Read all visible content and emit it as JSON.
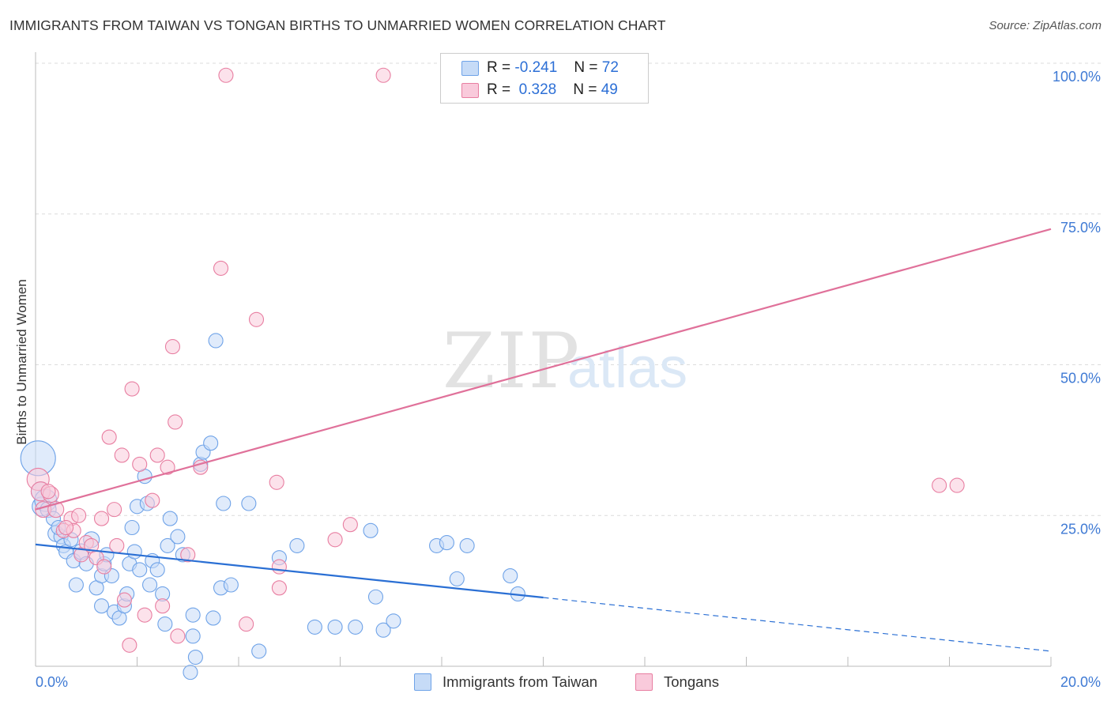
{
  "title": "IMMIGRANTS FROM TAIWAN VS TONGAN BIRTHS TO UNMARRIED WOMEN CORRELATION CHART",
  "source": "Source: ZipAtlas.com",
  "watermark": {
    "zip": "ZIP",
    "atlas": "atlas"
  },
  "legend": {
    "r_label": "R =",
    "n_label": "N =",
    "series": [
      {
        "name": "Immigrants from Taiwan",
        "r": "-0.241",
        "n": "72",
        "color": "#6fa3e8",
        "fill": "#c6dbf7"
      },
      {
        "name": "Tongans",
        "r": "0.328",
        "n": "49",
        "color": "#e87ea1",
        "fill": "#f9cadb"
      }
    ]
  },
  "chart_data": {
    "type": "scatter",
    "title": "IMMIGRANTS FROM TAIWAN VS TONGAN BIRTHS TO UNMARRIED WOMEN CORRELATION CHART",
    "xlabel": "",
    "ylabel": "Births to Unmarried Women",
    "xlim": [
      0,
      20
    ],
    "ylim": [
      0,
      100
    ],
    "x_tick_labels": [
      "0.0%",
      "20.0%"
    ],
    "y_tick_labels": [
      "25.0%",
      "50.0%",
      "75.0%",
      "100.0%"
    ],
    "y_ticks": [
      25,
      50,
      75,
      100
    ],
    "grid": true,
    "legend_position": "top-center",
    "series": [
      {
        "name": "Immigrants from Taiwan",
        "color": "#6fa3e8",
        "trend": {
          "x0": 0,
          "y0": 20.2,
          "x1": 10,
          "y1": 11.4,
          "dashed_to_x": 20,
          "dashed_to_y": 2.5
        },
        "points": [
          [
            0.05,
            34.5,
            22
          ],
          [
            0.1,
            29.0,
            12
          ],
          [
            0.12,
            26.5,
            12
          ],
          [
            0.2,
            27.5,
            14
          ],
          [
            0.25,
            26.0,
            10
          ],
          [
            0.35,
            24.5,
            9
          ],
          [
            0.4,
            22.0,
            10
          ],
          [
            0.5,
            21.5,
            9
          ],
          [
            0.55,
            20.0,
            9
          ],
          [
            0.6,
            19.0,
            9
          ],
          [
            0.7,
            21.0,
            9
          ],
          [
            0.75,
            17.5,
            9
          ],
          [
            0.8,
            13.5,
            9
          ],
          [
            0.9,
            19.0,
            10
          ],
          [
            1.0,
            17.0,
            9
          ],
          [
            1.1,
            21.0,
            10
          ],
          [
            1.2,
            13.0,
            9
          ],
          [
            1.3,
            15.0,
            9
          ],
          [
            1.35,
            17.0,
            9
          ],
          [
            1.4,
            18.5,
            9
          ],
          [
            1.5,
            15.0,
            9
          ],
          [
            1.55,
            9.0,
            9
          ],
          [
            1.65,
            8.0,
            9
          ],
          [
            1.75,
            10.0,
            9
          ],
          [
            1.8,
            12.0,
            9
          ],
          [
            1.85,
            17.0,
            9
          ],
          [
            1.95,
            19.0,
            9
          ],
          [
            2.05,
            16.0,
            9
          ],
          [
            2.0,
            26.5,
            9
          ],
          [
            2.15,
            31.5,
            9
          ],
          [
            2.2,
            27.0,
            9
          ],
          [
            2.3,
            17.5,
            9
          ],
          [
            2.4,
            16.0,
            9
          ],
          [
            2.5,
            12.0,
            9
          ],
          [
            2.55,
            7.0,
            9
          ],
          [
            2.6,
            20.0,
            9
          ],
          [
            2.65,
            24.5,
            9
          ],
          [
            2.8,
            21.5,
            9
          ],
          [
            2.9,
            18.5,
            9
          ],
          [
            3.05,
            -1.0,
            9
          ],
          [
            3.1,
            8.5,
            9
          ],
          [
            3.15,
            1.5,
            9
          ],
          [
            3.25,
            33.5,
            9
          ],
          [
            3.3,
            35.5,
            9
          ],
          [
            3.45,
            37.0,
            9
          ],
          [
            3.5,
            8.0,
            9
          ],
          [
            3.55,
            54.0,
            9
          ],
          [
            3.65,
            13.0,
            9
          ],
          [
            3.7,
            27.0,
            9
          ],
          [
            3.85,
            13.5,
            9
          ],
          [
            4.2,
            27.0,
            9
          ],
          [
            4.4,
            2.5,
            9
          ],
          [
            4.8,
            18.0,
            9
          ],
          [
            5.15,
            20.0,
            9
          ],
          [
            5.5,
            6.5,
            9
          ],
          [
            5.9,
            6.5,
            9
          ],
          [
            6.3,
            6.5,
            9
          ],
          [
            6.6,
            22.5,
            9
          ],
          [
            6.7,
            11.5,
            9
          ],
          [
            6.85,
            6.0,
            9
          ],
          [
            7.05,
            7.5,
            9
          ],
          [
            7.9,
            20.0,
            9
          ],
          [
            8.1,
            20.5,
            9
          ],
          [
            8.3,
            14.5,
            9
          ],
          [
            8.5,
            20.0,
            9
          ],
          [
            9.35,
            15.0,
            9
          ],
          [
            9.5,
            12.0,
            9
          ],
          [
            1.3,
            10.0,
            9
          ],
          [
            2.25,
            13.5,
            9
          ],
          [
            0.45,
            23.0,
            9
          ],
          [
            3.1,
            5.0,
            9
          ],
          [
            1.9,
            23.0,
            9
          ]
        ]
      },
      {
        "name": "Tongans",
        "color": "#e87ea1",
        "trend": {
          "x0": 0,
          "y0": 26.0,
          "x1": 20,
          "y1": 72.5
        },
        "points": [
          [
            0.05,
            31.0,
            14
          ],
          [
            0.1,
            29.0,
            12
          ],
          [
            0.15,
            26.0,
            10
          ],
          [
            0.3,
            28.5,
            10
          ],
          [
            0.4,
            26.0,
            10
          ],
          [
            0.55,
            22.5,
            9
          ],
          [
            0.7,
            24.5,
            9
          ],
          [
            0.75,
            22.5,
            9
          ],
          [
            0.85,
            25.0,
            9
          ],
          [
            0.9,
            18.5,
            9
          ],
          [
            1.0,
            20.5,
            9
          ],
          [
            1.1,
            20.0,
            9
          ],
          [
            1.2,
            18.0,
            9
          ],
          [
            1.35,
            16.5,
            9
          ],
          [
            1.45,
            38.0,
            9
          ],
          [
            1.55,
            26.0,
            9
          ],
          [
            1.6,
            20.0,
            9
          ],
          [
            1.7,
            35.0,
            9
          ],
          [
            1.75,
            11.0,
            9
          ],
          [
            1.85,
            3.5,
            9
          ],
          [
            1.9,
            46.0,
            9
          ],
          [
            2.05,
            33.5,
            9
          ],
          [
            2.15,
            8.5,
            9
          ],
          [
            2.3,
            27.5,
            9
          ],
          [
            2.4,
            35.0,
            9
          ],
          [
            2.5,
            10.0,
            9
          ],
          [
            2.6,
            33.0,
            9
          ],
          [
            2.7,
            53.0,
            9
          ],
          [
            2.75,
            40.5,
            9
          ],
          [
            2.8,
            5.0,
            9
          ],
          [
            3.0,
            18.5,
            9
          ],
          [
            3.25,
            33.0,
            9
          ],
          [
            3.65,
            66.0,
            9
          ],
          [
            3.75,
            98.0,
            9
          ],
          [
            4.15,
            7.0,
            9
          ],
          [
            4.35,
            57.5,
            9
          ],
          [
            4.75,
            30.5,
            9
          ],
          [
            4.8,
            16.5,
            9
          ],
          [
            4.8,
            13.0,
            9
          ],
          [
            5.9,
            21.0,
            9
          ],
          [
            6.2,
            23.5,
            9
          ],
          [
            6.85,
            98.0,
            9
          ],
          [
            8.3,
            98.0,
            9
          ],
          [
            9.0,
            98.0,
            9
          ],
          [
            17.8,
            30.0,
            9
          ],
          [
            18.15,
            30.0,
            9
          ],
          [
            0.25,
            29.0,
            9
          ],
          [
            0.6,
            23.0,
            9
          ],
          [
            1.3,
            24.5,
            9
          ]
        ]
      }
    ]
  }
}
